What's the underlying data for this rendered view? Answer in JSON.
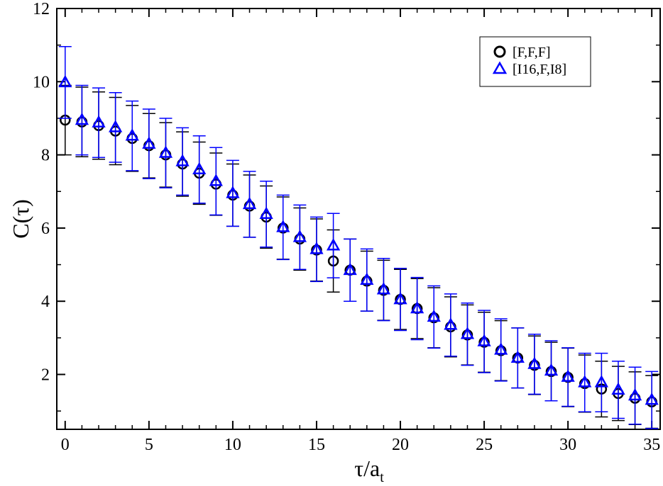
{
  "chart_data": {
    "type": "scatter",
    "x_tick_labels": [
      "0",
      "5",
      "10",
      "15",
      "20",
      "25",
      "30",
      "35"
    ],
    "y_tick_labels": [
      "2",
      "4",
      "6",
      "8",
      "10",
      "12"
    ],
    "x_ticks": [
      0,
      5,
      10,
      15,
      20,
      25,
      30,
      35
    ],
    "y_ticks": [
      2,
      4,
      6,
      8,
      10,
      12
    ],
    "xlim": [
      -0.5,
      35.5
    ],
    "ylim": [
      0.5,
      12
    ],
    "xlabel": {
      "main": "τ/a",
      "sub": "t"
    },
    "ylabel": "C(τ)",
    "grid": false,
    "legend_position": "top-right",
    "series": [
      {
        "name": "[F,F,F]",
        "marker": "circle",
        "color": "#000000",
        "x": [
          0,
          1,
          2,
          3,
          4,
          5,
          6,
          7,
          8,
          9,
          10,
          11,
          12,
          13,
          14,
          15,
          16,
          17,
          18,
          19,
          20,
          21,
          22,
          23,
          24,
          25,
          26,
          27,
          28,
          29,
          30,
          31,
          32,
          33,
          34,
          35
        ],
        "y": [
          8.95,
          8.9,
          8.8,
          8.65,
          8.45,
          8.25,
          8.0,
          7.75,
          7.5,
          7.2,
          6.9,
          6.6,
          6.3,
          6.0,
          5.7,
          5.4,
          5.1,
          4.85,
          4.55,
          4.3,
          4.05,
          3.8,
          3.55,
          3.3,
          3.08,
          2.88,
          2.65,
          2.45,
          2.25,
          2.08,
          1.92,
          1.75,
          1.6,
          1.48,
          1.35,
          1.25
        ],
        "err": [
          0.95,
          0.95,
          0.92,
          0.92,
          0.9,
          0.88,
          0.88,
          0.88,
          0.85,
          0.85,
          0.85,
          0.85,
          0.85,
          0.85,
          0.85,
          0.85,
          0.85,
          0.85,
          0.82,
          0.82,
          0.82,
          0.82,
          0.82,
          0.82,
          0.82,
          0.82,
          0.82,
          0.82,
          0.8,
          0.8,
          0.8,
          0.78,
          0.76,
          0.74,
          0.72,
          0.72
        ]
      },
      {
        "name": "[I16,F,I8]",
        "marker": "triangle",
        "color": "#0000ff",
        "x": [
          0,
          1,
          2,
          3,
          4,
          5,
          6,
          7,
          8,
          9,
          10,
          11,
          12,
          13,
          14,
          15,
          16,
          17,
          18,
          19,
          20,
          21,
          22,
          23,
          24,
          25,
          26,
          27,
          28,
          29,
          30,
          31,
          32,
          33,
          34,
          35
        ],
        "y": [
          9.98,
          8.95,
          8.88,
          8.75,
          8.52,
          8.3,
          8.05,
          7.82,
          7.6,
          7.28,
          6.95,
          6.65,
          6.38,
          6.02,
          5.75,
          5.42,
          5.52,
          4.85,
          4.58,
          4.32,
          4.05,
          3.8,
          3.57,
          3.35,
          3.1,
          2.9,
          2.67,
          2.45,
          2.28,
          2.1,
          1.93,
          1.78,
          1.78,
          1.58,
          1.42,
          1.3
        ],
        "err": [
          0.98,
          0.95,
          0.95,
          0.95,
          0.95,
          0.95,
          0.95,
          0.92,
          0.92,
          0.92,
          0.9,
          0.9,
          0.9,
          0.88,
          0.88,
          0.88,
          0.88,
          0.85,
          0.85,
          0.85,
          0.85,
          0.85,
          0.85,
          0.85,
          0.85,
          0.85,
          0.85,
          0.82,
          0.82,
          0.82,
          0.8,
          0.8,
          0.8,
          0.78,
          0.78,
          0.78
        ]
      }
    ]
  }
}
